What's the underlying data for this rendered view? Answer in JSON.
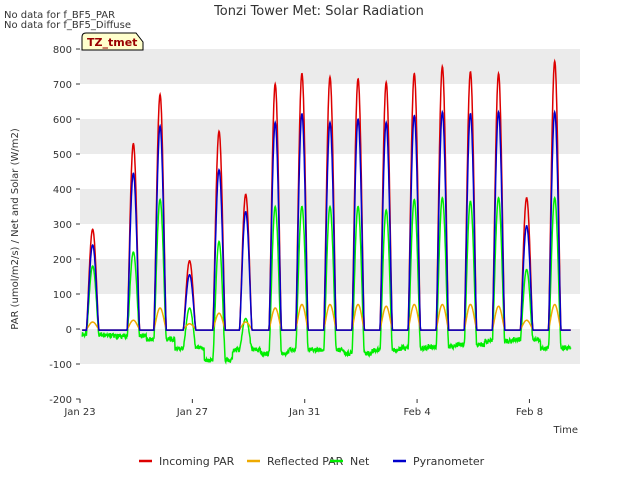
{
  "chart_data": {
    "type": "line",
    "title": "Tonzi Tower Met: Solar Radiation",
    "xlabel": "Time",
    "ylabel": "PAR (umol/m2/s) / Net and Solar (W/m2)",
    "ylim": [
      -200,
      800
    ],
    "xlim": [
      0,
      17.8
    ],
    "yticks": [
      -200,
      -100,
      0,
      100,
      200,
      300,
      400,
      500,
      600,
      700,
      800
    ],
    "xtick_labels": [
      "Jan 23",
      "Jan 27",
      "Jan 31",
      "Feb 4",
      "Feb 8"
    ],
    "xtick_positions": [
      0,
      4,
      8,
      12,
      16
    ],
    "grid": "alternating horizontal bands",
    "legend_position": "bottom",
    "notes": [
      "No data for f_BF5_PAR",
      "No data for f_BF5_Diffuse"
    ],
    "site_badge": "TZ_tmet",
    "x_units": "days since Jan 23",
    "daily_peaks": {
      "days": [
        0.45,
        1.9,
        2.85,
        3.9,
        4.95,
        5.9,
        6.95,
        7.9,
        8.9,
        9.9,
        10.9,
        11.9,
        12.9,
        13.9,
        14.9,
        15.9,
        16.9
      ],
      "incoming_par": [
        285,
        530,
        670,
        195,
        565,
        385,
        700,
        730,
        720,
        715,
        705,
        730,
        750,
        735,
        730,
        375,
        765
      ],
      "pyranometer": [
        240,
        445,
        580,
        155,
        455,
        335,
        590,
        615,
        590,
        600,
        590,
        610,
        620,
        615,
        620,
        295,
        620
      ],
      "reflected_par": [
        20,
        25,
        60,
        15,
        45,
        20,
        60,
        70,
        70,
        70,
        65,
        70,
        70,
        70,
        65,
        25,
        70
      ],
      "net_day": [
        180,
        220,
        370,
        60,
        250,
        30,
        350,
        350,
        350,
        350,
        340,
        370,
        375,
        365,
        375,
        170,
        375
      ],
      "net_night": [
        -15,
        -20,
        -30,
        -55,
        -90,
        -60,
        -70,
        -60,
        -60,
        -70,
        -60,
        -55,
        -50,
        -45,
        -35,
        -30,
        -55
      ]
    },
    "series": [
      {
        "name": "Incoming PAR",
        "color": "#dd0000"
      },
      {
        "name": "Reflected PAR",
        "color": "#eeaa00"
      },
      {
        "name": "Net",
        "color": "#00ee00"
      },
      {
        "name": "Pyranometer",
        "color": "#0000cc"
      }
    ]
  }
}
